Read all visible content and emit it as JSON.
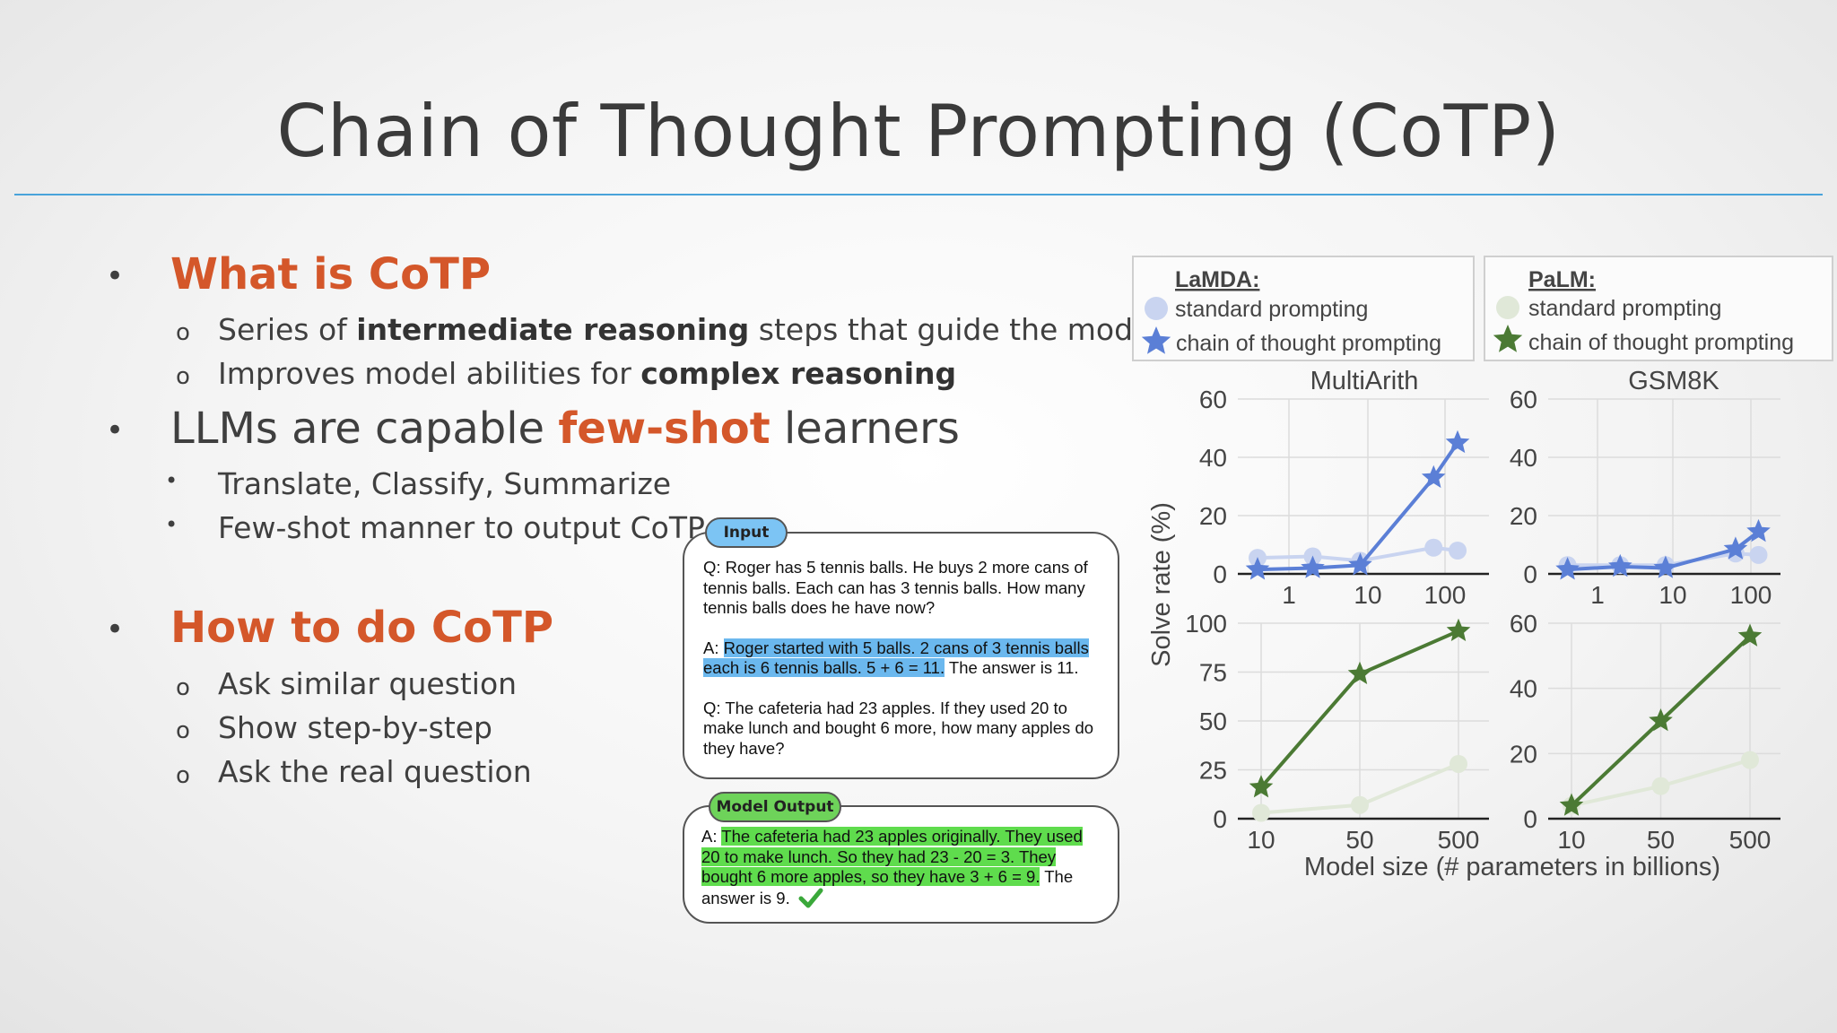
{
  "slide": {
    "title": "Chain of Thought Prompting (CoTP)",
    "bullets": [
      {
        "marker": "•",
        "text_pre": "",
        "text_hl": "What is CoTP",
        "text_post": "",
        "sub": [
          {
            "marker": "o",
            "pre": "Series of ",
            "bold": "intermediate reasoning",
            "post": " steps that guide the model"
          },
          {
            "marker": "o",
            "pre": "Improves model abilities for ",
            "bold": "complex reasoning",
            "post": ""
          }
        ]
      },
      {
        "marker": "•",
        "text_pre": "LLMs are capable ",
        "text_hl": "few-shot",
        "text_post": " learners",
        "sub": [
          {
            "marker": "•",
            "pre": "Translate, Classify, Summarize",
            "bold": "",
            "post": ""
          },
          {
            "marker": "•",
            "pre": "Few-shot manner to output CoTP",
            "bold": "",
            "post": ""
          }
        ]
      },
      {
        "marker": "•",
        "text_pre": "",
        "text_hl": "How to do CoTP",
        "text_post": "",
        "sub": [
          {
            "marker": "o",
            "pre": "Ask similar question",
            "bold": "",
            "post": ""
          },
          {
            "marker": "o",
            "pre": "Show step-by-step",
            "bold": "",
            "post": ""
          },
          {
            "marker": "o",
            "pre": "Ask the real question",
            "bold": "",
            "post": ""
          }
        ]
      }
    ]
  },
  "example": {
    "input_tag": "Input",
    "q1": "Q: Roger has 5 tennis balls. He buys 2 more cans of tennis balls. Each can has 3 tennis balls. How many tennis balls does he have now?",
    "a1_prefix": "A: ",
    "a1_highlight": "Roger started with 5 balls. 2 cans of 3 tennis balls each is 6 tennis balls. 5 + 6 = 11.",
    "a1_suffix": " The answer is 11.",
    "q2": "Q: The cafeteria had 23 apples. If they used 20 to make lunch and bought 6 more, how many apples do they have?",
    "output_tag": "Model Output",
    "a2_prefix": "A: ",
    "a2_highlight": "The cafeteria had 23 apples originally. They used 20 to make lunch. So they had 23 - 20 = 3. They bought 6 more apples, so they have 3 + 6 = 9.",
    "a2_suffix": " The answer is 9.",
    "check_icon": "checkmark-icon"
  },
  "colors": {
    "accent_orange": "#d4572a",
    "rule_blue": "#49a3da",
    "lamda_cot": "#5b7fd6",
    "lamda_std": "#c9d4f0",
    "palm_cot": "#4b7a34",
    "palm_std": "#e0e8d8",
    "highlight_blue": "#6bb8ee",
    "highlight_green": "#5fdc4d"
  },
  "chart_data": [
    {
      "type": "line",
      "model": "LaMDA",
      "dataset": "MultiArith",
      "xscale": "log",
      "xticks": [
        "1",
        "10",
        "100"
      ],
      "ylim": [
        0,
        60
      ],
      "yticks": [
        "0",
        "20",
        "40",
        "60"
      ],
      "series": [
        {
          "name": "standard prompting",
          "x": [
            0.4,
            2,
            8,
            68,
            137
          ],
          "y": [
            5.5,
            6,
            4.5,
            9,
            8
          ]
        },
        {
          "name": "chain of thought prompting",
          "x": [
            0.4,
            2,
            8,
            68,
            137
          ],
          "y": [
            1.5,
            2,
            3,
            33,
            45
          ]
        }
      ]
    },
    {
      "type": "line",
      "model": "LaMDA",
      "dataset": "GSM8K",
      "xscale": "log",
      "xticks": [
        "1",
        "10",
        "100"
      ],
      "ylim": [
        0,
        60
      ],
      "yticks": [
        "0",
        "20",
        "40",
        "60"
      ],
      "series": [
        {
          "name": "standard prompting",
          "x": [
            0.4,
            2,
            8,
            68,
            137
          ],
          "y": [
            3,
            3,
            3,
            7,
            6.5
          ]
        },
        {
          "name": "chain of thought prompting",
          "x": [
            0.4,
            2,
            8,
            68,
            137
          ],
          "y": [
            1.5,
            2.5,
            2,
            8.5,
            14.5
          ]
        }
      ]
    },
    {
      "type": "line",
      "model": "PaLM",
      "dataset": "MultiArith",
      "xticks": [
        "10",
        "50",
        "500"
      ],
      "x_categories": [
        "8",
        "62",
        "540"
      ],
      "ylim": [
        0,
        100
      ],
      "yticks": [
        "0",
        "25",
        "50",
        "75",
        "100"
      ],
      "series": [
        {
          "name": "standard prompting",
          "y": [
            3,
            7,
            28
          ]
        },
        {
          "name": "chain of thought prompting",
          "y": [
            16,
            74,
            96
          ]
        }
      ]
    },
    {
      "type": "line",
      "model": "PaLM",
      "dataset": "GSM8K",
      "xticks": [
        "10",
        "50",
        "500"
      ],
      "x_categories": [
        "8",
        "62",
        "540"
      ],
      "ylim": [
        0,
        60
      ],
      "yticks": [
        "0",
        "20",
        "40",
        "60"
      ],
      "series": [
        {
          "name": "standard prompting",
          "y": [
            4,
            10,
            18
          ]
        },
        {
          "name": "chain of thought prompting",
          "y": [
            4,
            30,
            56
          ]
        }
      ]
    }
  ],
  "chart_labels": {
    "legend_lamda_title": "LaMDA:",
    "legend_palm_title": "PaLM:",
    "legend_std": "standard prompting",
    "legend_cot": "chain of thought prompting",
    "col1_title": "MultiArith",
    "col2_title": "GSM8K",
    "ylabel": "Solve rate (%)",
    "xlabel": "Model size (# parameters in billions)"
  }
}
